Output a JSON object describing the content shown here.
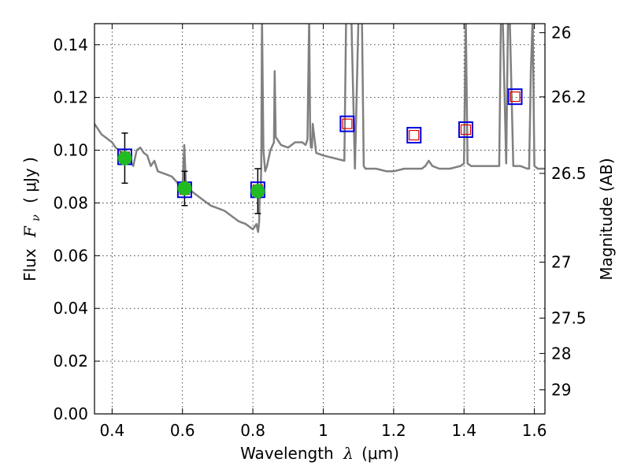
{
  "chart_data": {
    "type": "scatter",
    "xlabel_prefix": "Wavelength",
    "xlabel_sym": "λ",
    "xlabel_unit": "(μm)",
    "ylabel_prefix": "Flux",
    "ylabel_sym": "F",
    "ylabel_sub": "ν",
    "ylabel_unit": "( μJy )",
    "y2label": "Magnitude (AB)",
    "xlim": [
      0.35,
      1.63
    ],
    "ylim": [
      0.0,
      0.148
    ],
    "grid": true,
    "x_ticks": [
      0.4,
      0.6,
      0.8,
      1.0,
      1.2,
      1.4,
      1.6
    ],
    "x_tick_labels": [
      "0.4",
      "0.6",
      "0.8",
      "1",
      "1.2",
      "1.4",
      "1.6"
    ],
    "y_ticks": [
      0.0,
      0.02,
      0.04,
      0.06,
      0.08,
      0.1,
      0.12,
      0.14
    ],
    "y_tick_labels": [
      "0.00",
      "0.02",
      "0.04",
      "0.06",
      "0.08",
      "0.10",
      "0.12",
      "0.14"
    ],
    "y2_ticks": [
      {
        "mag": 26,
        "label": "26"
      },
      {
        "mag": 26.2,
        "label": "26.2"
      },
      {
        "mag": 26.5,
        "label": "26.5"
      },
      {
        "mag": 27,
        "label": "27"
      },
      {
        "mag": 27.5,
        "label": "27.5"
      },
      {
        "mag": 28,
        "label": "28"
      },
      {
        "mag": 29,
        "label": "29"
      }
    ],
    "colors": {
      "spectrum": "#808080",
      "observed": "#22bb22",
      "model_outer": "#0000dd",
      "model_inner": "#dd0000"
    },
    "model_spectrum": {
      "x": [
        0.35,
        0.36,
        0.37,
        0.38,
        0.39,
        0.4,
        0.41,
        0.42,
        0.43,
        0.44,
        0.45,
        0.46,
        0.47,
        0.48,
        0.49,
        0.5,
        0.51,
        0.52,
        0.53,
        0.55,
        0.57,
        0.59,
        0.6,
        0.605,
        0.61,
        0.62,
        0.64,
        0.66,
        0.68,
        0.7,
        0.72,
        0.74,
        0.76,
        0.78,
        0.8,
        0.81,
        0.815,
        0.818,
        0.82,
        0.822,
        0.824,
        0.826,
        0.83,
        0.835,
        0.84,
        0.85,
        0.86,
        0.862,
        0.865,
        0.87,
        0.88,
        0.9,
        0.92,
        0.94,
        0.95,
        0.955,
        0.96,
        0.963,
        0.965,
        0.968,
        0.97,
        0.98,
        1.0,
        1.03,
        1.06,
        1.065,
        1.07,
        1.075,
        1.08,
        1.09,
        1.1,
        1.11,
        1.115,
        1.12,
        1.13,
        1.15,
        1.18,
        1.2,
        1.23,
        1.26,
        1.28,
        1.29,
        1.3,
        1.31,
        1.33,
        1.36,
        1.39,
        1.4,
        1.405,
        1.41,
        1.42,
        1.44,
        1.47,
        1.5,
        1.505,
        1.51,
        1.52,
        1.525,
        1.53,
        1.54,
        1.56,
        1.58,
        1.585,
        1.59,
        1.595,
        1.6,
        1.61,
        1.63
      ],
      "y": [
        0.11,
        0.108,
        0.106,
        0.105,
        0.104,
        0.103,
        0.101,
        0.1,
        0.099,
        0.099,
        0.096,
        0.094,
        0.1,
        0.101,
        0.099,
        0.098,
        0.094,
        0.096,
        0.092,
        0.091,
        0.09,
        0.087,
        0.086,
        0.102,
        0.086,
        0.085,
        0.083,
        0.081,
        0.079,
        0.078,
        0.077,
        0.075,
        0.073,
        0.072,
        0.07,
        0.072,
        0.069,
        0.073,
        0.086,
        0.082,
        0.095,
        0.15,
        0.1,
        0.092,
        0.094,
        0.1,
        0.103,
        0.13,
        0.105,
        0.104,
        0.102,
        0.101,
        0.103,
        0.103,
        0.102,
        0.104,
        0.15,
        0.105,
        0.101,
        0.101,
        0.11,
        0.099,
        0.098,
        0.097,
        0.096,
        0.15,
        0.15,
        0.15,
        0.15,
        0.093,
        0.15,
        0.15,
        0.094,
        0.093,
        0.093,
        0.093,
        0.092,
        0.092,
        0.093,
        0.093,
        0.093,
        0.094,
        0.096,
        0.094,
        0.093,
        0.093,
        0.094,
        0.095,
        0.15,
        0.095,
        0.094,
        0.094,
        0.094,
        0.094,
        0.15,
        0.15,
        0.095,
        0.15,
        0.15,
        0.094,
        0.094,
        0.093,
        0.093,
        0.13,
        0.15,
        0.094,
        0.093,
        0.093
      ]
    },
    "observed": [
      {
        "x": 0.436,
        "y": 0.097,
        "err": 0.0095
      },
      {
        "x": 0.606,
        "y": 0.0855,
        "err": 0.0065
      },
      {
        "x": 0.814,
        "y": 0.0845,
        "err": 0.0085
      }
    ],
    "model_photometry": [
      {
        "x": 0.436,
        "y": 0.0975
      },
      {
        "x": 0.606,
        "y": 0.085
      },
      {
        "x": 0.814,
        "y": 0.085
      },
      {
        "x": 1.068,
        "y": 0.11
      },
      {
        "x": 1.258,
        "y": 0.1057
      },
      {
        "x": 1.405,
        "y": 0.1078
      },
      {
        "x": 1.545,
        "y": 0.1203
      }
    ]
  }
}
